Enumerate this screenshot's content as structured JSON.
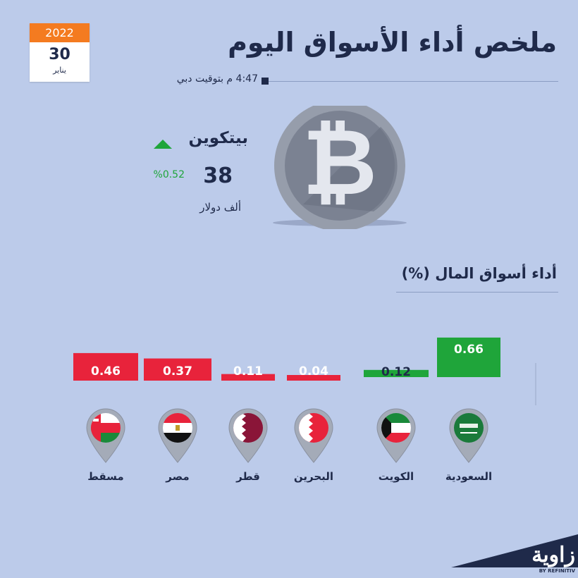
{
  "date": {
    "year": "2022",
    "day": "30",
    "month": "يناير"
  },
  "header": {
    "title": "ملخص أداء الأسواق اليوم",
    "subtitle": "4:47 م بتوقيت دبي"
  },
  "bitcoin": {
    "name": "بيتكوين",
    "value": "38",
    "unit": "ألف دولار",
    "change": "%0.52",
    "direction": "up",
    "icon": "bitcoin-coin-icon"
  },
  "section": {
    "title": "أداء أسواق المال (%)"
  },
  "colors": {
    "positive": "#1fa53a",
    "negative": "#e8233b",
    "text": "#1f2a4a",
    "accent": "#f47b20",
    "background": "#bccbea"
  },
  "chart_data": {
    "type": "bar",
    "categories": [
      "السعودية",
      "الكويت",
      "البحرين",
      "قطر",
      "مصر",
      "مسقط"
    ],
    "values": [
      0.66,
      0.12,
      -0.04,
      -0.11,
      -0.37,
      -0.46
    ],
    "value_labels": [
      "0.66",
      "0.12",
      "0.04",
      "0.11",
      "0.37",
      "0.46"
    ],
    "flags": [
      "saudi-flag-icon",
      "kuwait-flag-icon",
      "bahrain-flag-icon",
      "qatar-flag-icon",
      "egypt-flag-icon",
      "oman-flag-icon"
    ],
    "ylim": [
      -0.5,
      0.7
    ],
    "grid": false,
    "legend": "none"
  },
  "logo": {
    "text": "زاوية",
    "sub": "BY REFINITIV"
  }
}
